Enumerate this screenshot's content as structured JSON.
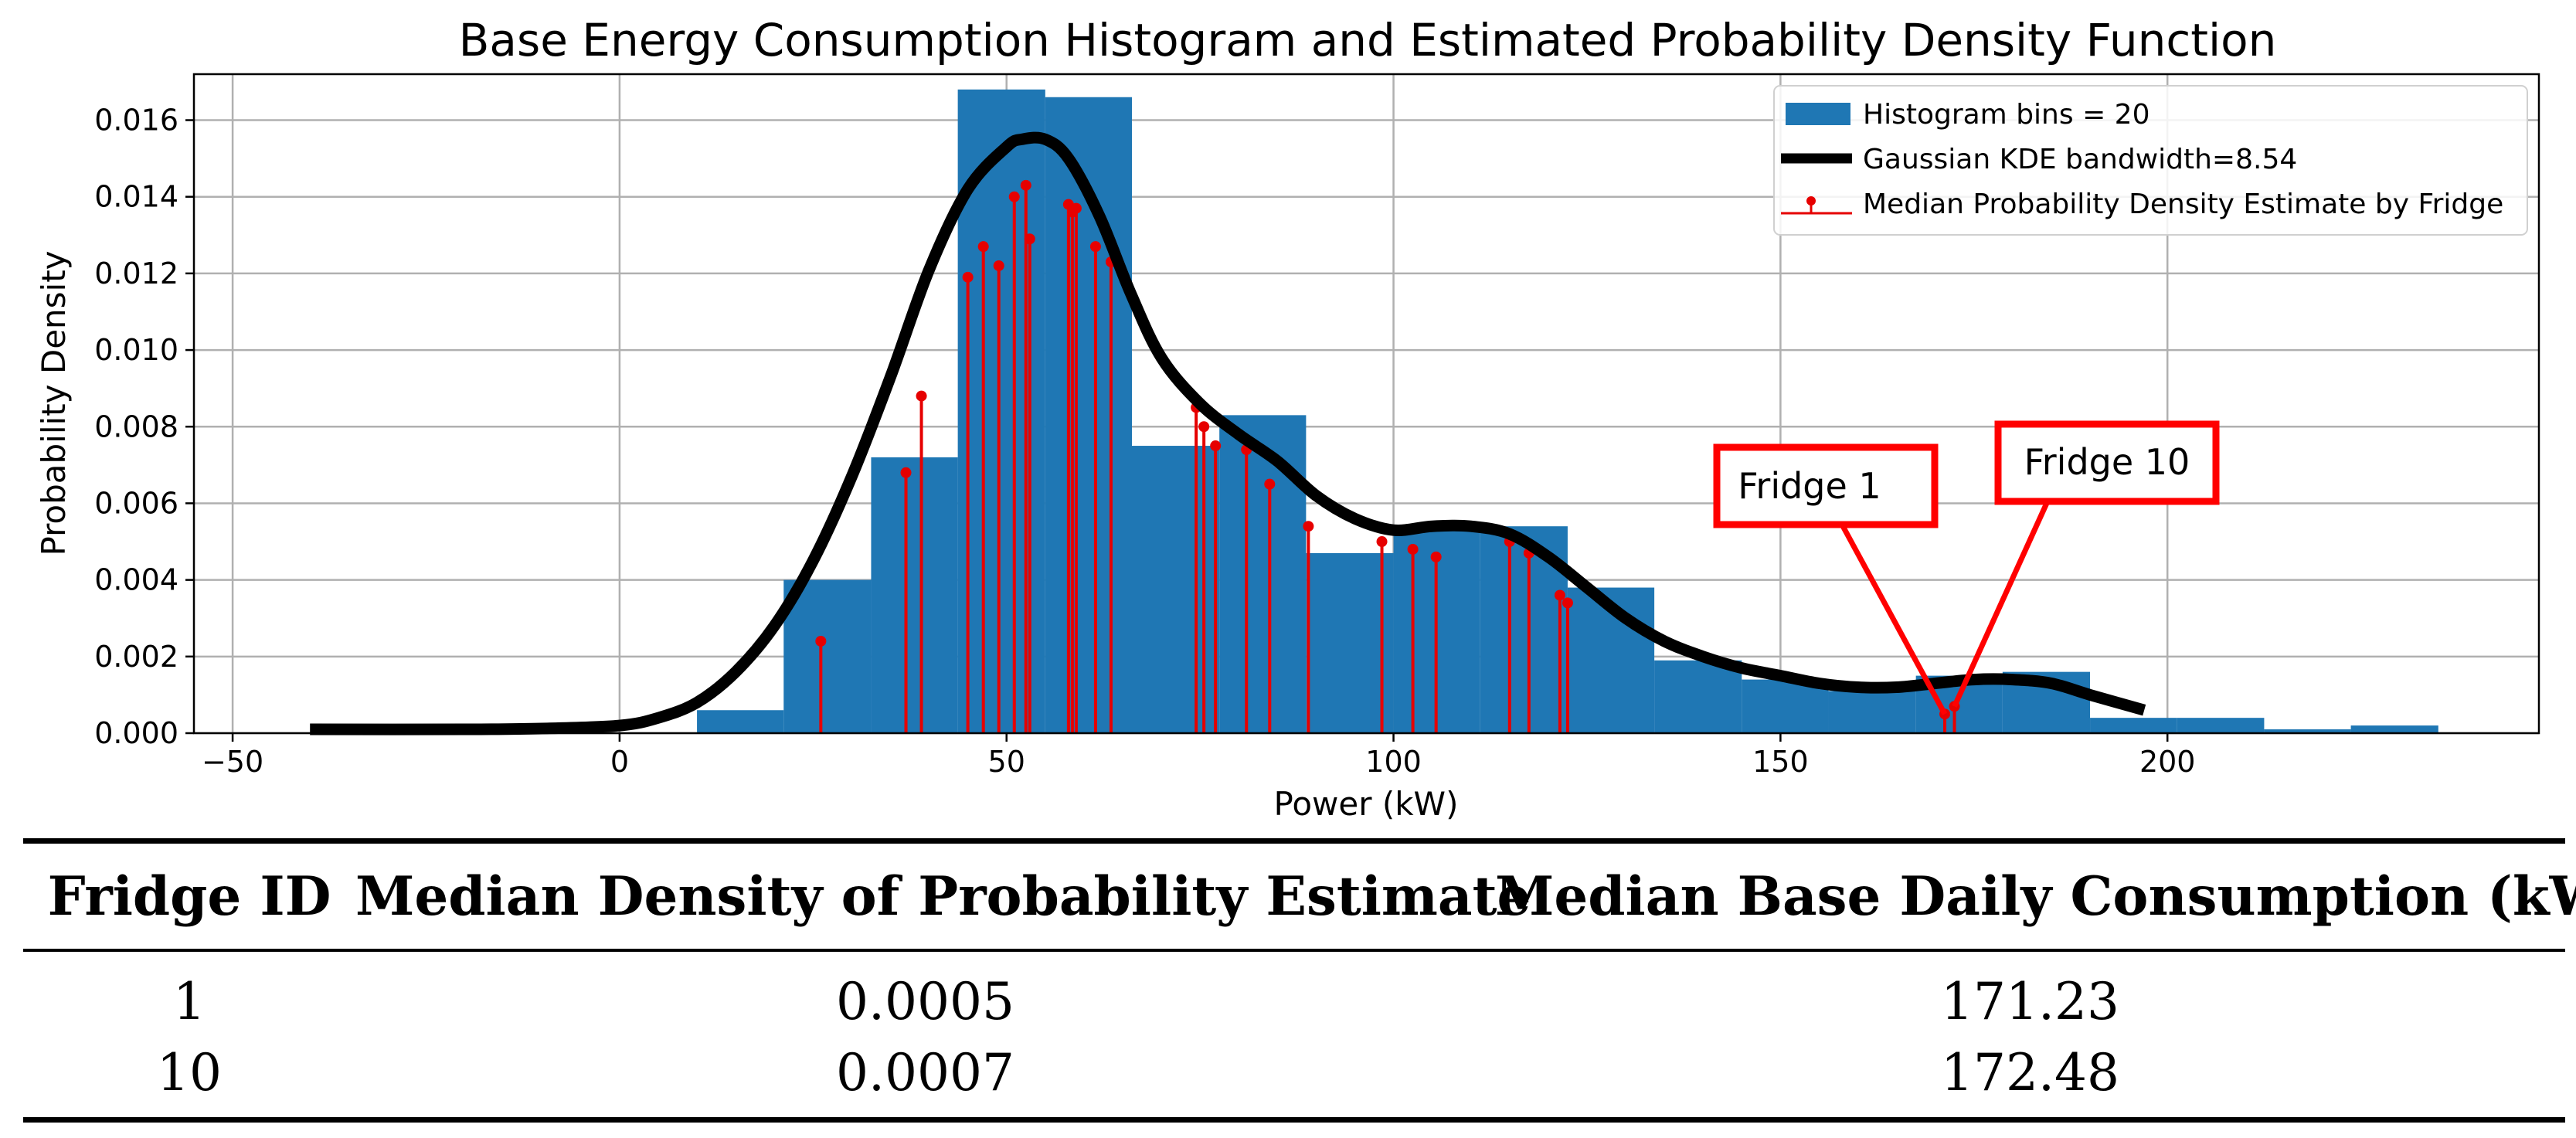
{
  "chart_data": {
    "type": "histogram",
    "title": "Base Energy Consumption Histogram and Estimated Probability Density Function",
    "xlabel": "Power (kW)",
    "ylabel": "Probability Density",
    "xlim": [
      -55,
      248
    ],
    "ylim": [
      0,
      0.0172
    ],
    "xticks": [
      -50,
      0,
      50,
      100,
      150,
      200
    ],
    "xtick_labels": [
      "−50",
      "0",
      "50",
      "100",
      "150",
      "200"
    ],
    "yticks": [
      0,
      0.002,
      0.004,
      0.006,
      0.008,
      0.01,
      0.012,
      0.014,
      0.016
    ],
    "ytick_labels": [
      "0.000",
      "0.002",
      "0.004",
      "0.006",
      "0.008",
      "0.010",
      "0.012",
      "0.014",
      "0.016"
    ],
    "grid": true,
    "legend_position": "top-right",
    "colors": {
      "bars": "#1f77b4",
      "kde": "#000000",
      "stems": "#e60000",
      "callout": "#ff0000"
    },
    "histogram": {
      "name": "Histogram bins = 20",
      "bin_edges": [
        10,
        21.2,
        32.5,
        43.7,
        55,
        66.2,
        77.5,
        88.7,
        100,
        111.2,
        122.5,
        133.7,
        145,
        156.2,
        167.5,
        178.7,
        190,
        201.2,
        212.5,
        223.7,
        235
      ],
      "values": [
        0.0006,
        0.004,
        0.0072,
        0.0168,
        0.0166,
        0.0075,
        0.0083,
        0.0047,
        0.0054,
        0.0054,
        0.0038,
        0.0019,
        0.0014,
        0.0011,
        0.0015,
        0.0016,
        0.0004,
        0.0004,
        0.0001,
        0.0002
      ]
    },
    "kde": {
      "name": "Gaussian KDE bandwidth=8.54",
      "x": [
        -40,
        -20,
        -10,
        0,
        5,
        10,
        15,
        20,
        25,
        30,
        35,
        40,
        45,
        50,
        52,
        55,
        58,
        62,
        66,
        70,
        75,
        80,
        85,
        90,
        95,
        100,
        105,
        110,
        115,
        120,
        125,
        130,
        135,
        140,
        145,
        150,
        155,
        160,
        165,
        170,
        175,
        180,
        185,
        190,
        197
      ],
      "y": [
        0.0001,
        0.0001,
        0.00012,
        0.0002,
        0.0004,
        0.0008,
        0.0016,
        0.0028,
        0.0045,
        0.0067,
        0.0093,
        0.0121,
        0.0142,
        0.0153,
        0.0155,
        0.0155,
        0.015,
        0.0135,
        0.0115,
        0.0098,
        0.0086,
        0.0078,
        0.0071,
        0.0062,
        0.0056,
        0.0053,
        0.0054,
        0.0054,
        0.0052,
        0.0046,
        0.0038,
        0.003,
        0.0024,
        0.002,
        0.0017,
        0.0015,
        0.0013,
        0.0012,
        0.0012,
        0.0013,
        0.0014,
        0.0014,
        0.0013,
        0.001,
        0.0006
      ]
    },
    "stems": {
      "name": "Median Probability Density Estimate by Fridge",
      "x": [
        26,
        37,
        39,
        45,
        47,
        49,
        51,
        52.5,
        53,
        58,
        58.5,
        59,
        61.5,
        63.5,
        74.5,
        75.5,
        77,
        81,
        84,
        89,
        98.5,
        102.5,
        105.5,
        115,
        117.5,
        121.5,
        122.5,
        171.23,
        172.48
      ],
      "y": [
        0.0024,
        0.0068,
        0.0088,
        0.0119,
        0.0127,
        0.0122,
        0.014,
        0.0143,
        0.0129,
        0.0138,
        0.0136,
        0.0137,
        0.0127,
        0.0123,
        0.0085,
        0.008,
        0.0075,
        0.0074,
        0.0065,
        0.0054,
        0.005,
        0.0048,
        0.0046,
        0.005,
        0.0047,
        0.0036,
        0.0034,
        0.0005,
        0.0007
      ]
    },
    "annotations": [
      {
        "label": "Fridge 1",
        "x": 171.23,
        "y": 0.0005
      },
      {
        "label": "Fridge 10",
        "x": 172.48,
        "y": 0.0007
      }
    ]
  },
  "table": {
    "headers": [
      "Fridge ID",
      "Median Density of Probability Estimate",
      "Median Base Daily Consumption (kW)"
    ],
    "rows": [
      {
        "id": "1",
        "density": "0.0005",
        "consumption": "171.23"
      },
      {
        "id": "10",
        "density": "0.0007",
        "consumption": "172.48"
      }
    ]
  }
}
